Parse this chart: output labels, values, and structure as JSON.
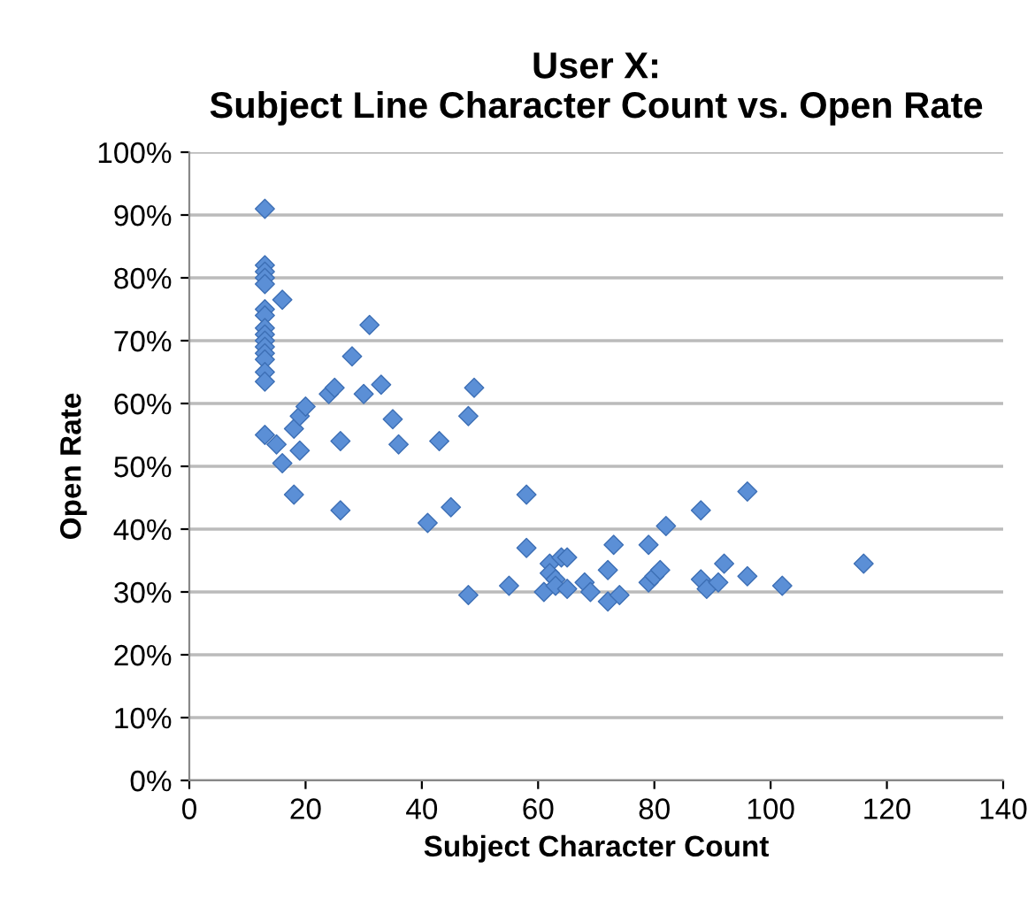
{
  "chart_data": {
    "type": "scatter",
    "title": "User X:\nSubject Line Character Count vs. Open Rate",
    "xlabel": "Subject Character Count",
    "ylabel": "Open Rate",
    "x": [
      13,
      13,
      13,
      13,
      13,
      13,
      13,
      13,
      13,
      13,
      13,
      13,
      13,
      13,
      13,
      13,
      16,
      15,
      16,
      18,
      18,
      19,
      19,
      20,
      24,
      25,
      26,
      26,
      28,
      30,
      31,
      33,
      35,
      36,
      41,
      43,
      45,
      48,
      49,
      48,
      55,
      58,
      58,
      61,
      62,
      62,
      63,
      64,
      65,
      63,
      65,
      68,
      69,
      72,
      72,
      73,
      74,
      79,
      79,
      80,
      81,
      82,
      88,
      88,
      89,
      91,
      92,
      96,
      96,
      102,
      116
    ],
    "values": [
      91,
      82,
      81,
      80,
      79,
      75,
      74,
      72,
      71,
      70,
      69,
      68,
      67,
      65,
      63.5,
      55,
      76.5,
      53.5,
      50.5,
      45.5,
      56,
      58,
      52.5,
      59.5,
      61.5,
      62.5,
      54,
      43,
      67.5,
      61.5,
      72.5,
      63,
      57.5,
      53.5,
      41,
      54,
      43.5,
      58,
      62.5,
      29.5,
      31,
      45.5,
      37,
      30,
      34.5,
      33,
      32,
      35.5,
      35.5,
      31,
      30.5,
      31.5,
      30,
      28.5,
      33.5,
      37.5,
      29.5,
      31.5,
      37.5,
      32.5,
      33.5,
      40.5,
      43,
      32,
      30.5,
      31.5,
      34.5,
      46,
      32.5,
      31,
      34.5
    ],
    "color": "#5b8fd6",
    "marker": "diamond",
    "grid": "y",
    "legend": false,
    "xlim": [
      0,
      140
    ],
    "xticks": [
      0,
      20,
      40,
      60,
      80,
      100,
      120,
      140
    ],
    "ylim": [
      0,
      100
    ],
    "yticks": [
      {
        "value": 0,
        "label": "0%"
      },
      {
        "value": 10,
        "label": "10%"
      },
      {
        "value": 20,
        "label": "20%"
      },
      {
        "value": 30,
        "label": "30%"
      },
      {
        "value": 40,
        "label": "40%"
      },
      {
        "value": 50,
        "label": "50%"
      },
      {
        "value": 60,
        "label": "60%"
      },
      {
        "value": 70,
        "label": "70%"
      },
      {
        "value": 80,
        "label": "80%"
      },
      {
        "value": 90,
        "label": "90%"
      },
      {
        "value": 100,
        "label": "100%"
      }
    ]
  }
}
